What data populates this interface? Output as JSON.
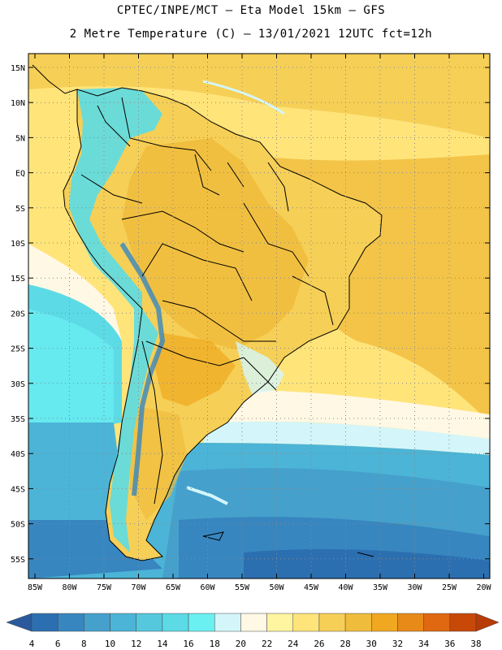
{
  "header": {
    "line1": "CPTEC/INPE/MCT –  Eta Model 15km – GFS",
    "line2": "2 Metre Temperature (C) – 13/01/2021 12UTC fct=12h"
  },
  "map": {
    "lon_labels": [
      "85W",
      "80W",
      "75W",
      "70W",
      "65W",
      "60W",
      "55W",
      "50W",
      "45W",
      "40W",
      "35W",
      "30W",
      "25W",
      "20W"
    ],
    "lat_labels": [
      "15N",
      "10N",
      "5N",
      "EQ",
      "5S",
      "10S",
      "15S",
      "20S",
      "25S",
      "30S",
      "35S",
      "40S",
      "45S",
      "50S",
      "55S"
    ]
  },
  "colorbar": {
    "labels": [
      "4",
      "6",
      "8",
      "10",
      "12",
      "14",
      "16",
      "18",
      "20",
      "22",
      "24",
      "26",
      "28",
      "30",
      "32",
      "34",
      "36",
      "38"
    ],
    "colors": [
      "#2c6fb0",
      "#3786c0",
      "#45a0cc",
      "#4cb4d6",
      "#56c8de",
      "#5cdbe6",
      "#6bf0f2",
      "#d4f6fa",
      "#fff8e4",
      "#fff4a0",
      "#ffe47a",
      "#f6cf56",
      "#f0bc3c",
      "#f0a820",
      "#e88a18",
      "#e06810",
      "#c84808"
    ],
    "low_color": "#2a5a9c",
    "high_color": "#b83a06"
  }
}
